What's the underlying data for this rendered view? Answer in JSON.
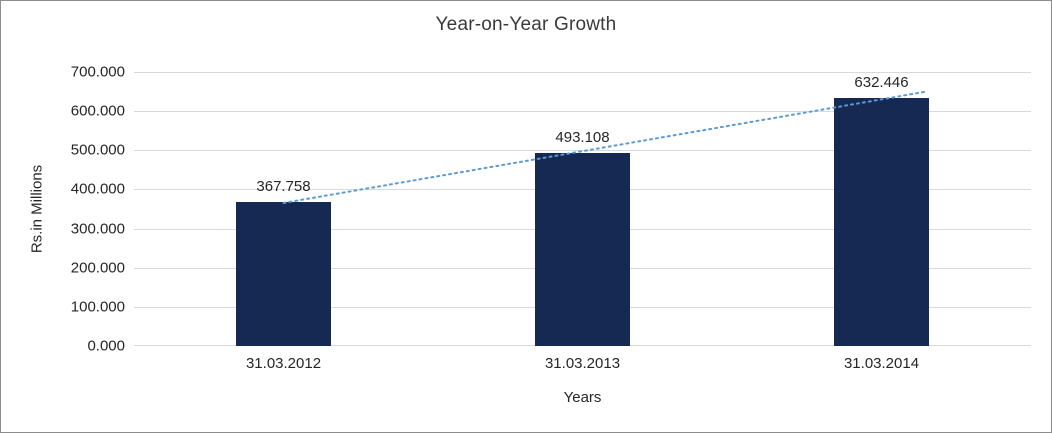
{
  "chart_data": {
    "type": "bar",
    "title": "Year-on-Year Growth",
    "xlabel": "Years",
    "ylabel": "Rs.in Millions",
    "categories": [
      "31.03.2012",
      "31.03.2013",
      "31.03.2014"
    ],
    "values": [
      367.758,
      493.108,
      632.446
    ],
    "value_labels": [
      "367.758",
      "493.108",
      "632.446"
    ],
    "ylim": [
      0,
      700
    ],
    "ytick_values": [
      0,
      100,
      200,
      300,
      400,
      500,
      600,
      700
    ],
    "ytick_labels": [
      "0.000",
      "100.000",
      "200.000",
      "300.000",
      "400.000",
      "500.000",
      "600.000",
      "700.000"
    ],
    "grid": true,
    "legend": "none",
    "bar_color": "#162952",
    "gridline_color": "#d9d9d9",
    "trendline": {
      "type": "linear",
      "style": "dotted",
      "color": "#5B9BD5"
    }
  }
}
